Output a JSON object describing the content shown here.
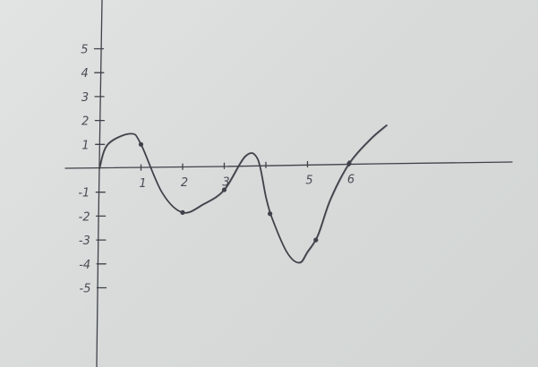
{
  "chart_data": {
    "type": "line",
    "title": "",
    "xlabel": "",
    "ylabel": "",
    "xlim": [
      0,
      7
    ],
    "ylim": [
      -5,
      5
    ],
    "grid": false,
    "x_ticks": [
      1,
      2,
      3,
      4,
      5,
      6
    ],
    "x_tick_labels": [
      "1",
      "2",
      "3",
      "",
      "5",
      "6"
    ],
    "y_ticks": [
      5,
      4,
      3,
      2,
      1,
      -1,
      -2,
      -3,
      -4,
      -5
    ],
    "y_tick_labels": [
      "5",
      "4",
      "3",
      "2",
      "1",
      "-1",
      "-2",
      "-3",
      "-4",
      "-5"
    ],
    "series": [
      {
        "name": "",
        "x": [
          0,
          0.2,
          0.75,
          1.0,
          1.5,
          2.0,
          2.5,
          3.0,
          3.5,
          3.8,
          4.0,
          4.15,
          4.5,
          4.8,
          5.0,
          5.25,
          5.55,
          6.0,
          6.5,
          6.9
        ],
        "y": [
          0,
          1.0,
          1.45,
          1.0,
          -1.0,
          -1.85,
          -1.5,
          -0.9,
          0.5,
          0.4,
          -1.2,
          -2.1,
          -3.5,
          -3.95,
          -3.5,
          -2.8,
          -1.3,
          0.2,
          1.2,
          1.8
        ],
        "markers_x": [
          1.0,
          2.0,
          3.0,
          4.1,
          5.2,
          6.0
        ],
        "markers_y": [
          1.0,
          -1.85,
          -0.9,
          -1.9,
          -3.0,
          0.2
        ]
      }
    ],
    "ink_color": "#3f4249"
  }
}
